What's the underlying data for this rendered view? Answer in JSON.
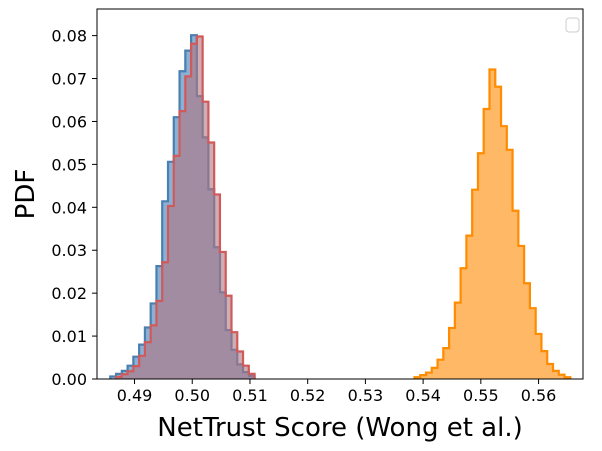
{
  "chart_data": {
    "type": "histogram",
    "title": "",
    "xlabel": "NetTrust Score (Wong et al.)",
    "ylabel": "PDF",
    "xlim": [
      0.4835,
      0.5677
    ],
    "ylim": [
      0,
      0.0862
    ],
    "x_ticks": [
      "0.49",
      "0.50",
      "0.51",
      "0.52",
      "0.53",
      "0.54",
      "0.55",
      "0.56"
    ],
    "y_ticks": [
      "0.00",
      "0.01",
      "0.02",
      "0.03",
      "0.04",
      "0.05",
      "0.06",
      "0.07",
      "0.08"
    ],
    "legend": {
      "placement": "top-right",
      "entries": []
    },
    "series": [
      {
        "color": "#4a7fb0",
        "fill": "#5b8ec0",
        "fill_opacity": 0.7,
        "bin_edges": [
          0.4858,
          0.4868,
          0.4878,
          0.4888,
          0.4898,
          0.4908,
          0.4918,
          0.4928,
          0.4938,
          0.4948,
          0.4958,
          0.4968,
          0.4978,
          0.4988,
          0.4998,
          0.5008,
          0.5018,
          0.5028,
          0.5038,
          0.5048,
          0.5058,
          0.5068,
          0.5078,
          0.5088,
          0.5098,
          0.5108
        ],
        "values": [
          0.0006,
          0.0012,
          0.0019,
          0.0031,
          0.0052,
          0.008,
          0.012,
          0.0176,
          0.0263,
          0.0414,
          0.0506,
          0.061,
          0.0717,
          0.0765,
          0.0801,
          0.0659,
          0.0563,
          0.0442,
          0.0307,
          0.0202,
          0.0114,
          0.0068,
          0.0034,
          0.0016,
          0.0007
        ]
      },
      {
        "color": "#d05a5a",
        "fill": "#b07480",
        "fill_opacity": 0.6,
        "bin_edges": [
          0.4868,
          0.4878,
          0.4888,
          0.4898,
          0.4908,
          0.4918,
          0.4928,
          0.4938,
          0.4948,
          0.4958,
          0.4968,
          0.4978,
          0.4988,
          0.4998,
          0.5008,
          0.5018,
          0.5028,
          0.5038,
          0.5048,
          0.5058,
          0.5068,
          0.5078,
          0.5088,
          0.5098,
          0.5108
        ],
        "values": [
          0.0005,
          0.0011,
          0.0018,
          0.003,
          0.0054,
          0.0086,
          0.0125,
          0.0182,
          0.0272,
          0.0403,
          0.052,
          0.0624,
          0.0705,
          0.0781,
          0.0798,
          0.0646,
          0.0551,
          0.043,
          0.0296,
          0.0194,
          0.0109,
          0.0064,
          0.0031,
          0.0012
        ]
      },
      {
        "color": "#ff8c00",
        "fill": "#ffb866",
        "fill_opacity": 1,
        "bin_edges": [
          0.5385,
          0.5395,
          0.5405,
          0.5415,
          0.5425,
          0.5435,
          0.5445,
          0.5455,
          0.5465,
          0.5475,
          0.5485,
          0.5495,
          0.5505,
          0.5515,
          0.5525,
          0.5535,
          0.5545,
          0.5555,
          0.5565,
          0.5575,
          0.5585,
          0.5595,
          0.5605,
          0.5615,
          0.5625,
          0.5635,
          0.5645,
          0.5655
        ],
        "values": [
          0.0004,
          0.0009,
          0.0015,
          0.0026,
          0.0045,
          0.0072,
          0.0119,
          0.0178,
          0.0258,
          0.0334,
          0.0441,
          0.0526,
          0.0629,
          0.0721,
          0.0681,
          0.0589,
          0.0534,
          0.0392,
          0.031,
          0.0223,
          0.0165,
          0.0105,
          0.0065,
          0.0035,
          0.0019,
          0.001,
          0.0004
        ]
      }
    ]
  }
}
